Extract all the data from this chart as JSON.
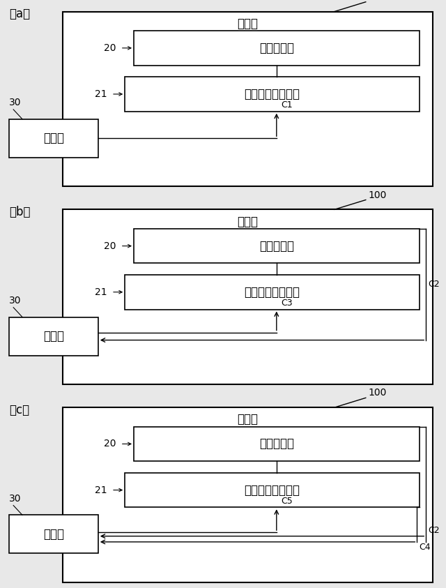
{
  "bg_color": "#e8e8e8",
  "box_color": "#ffffff",
  "box_edge": "#000000",
  "title_100": "100",
  "title_daichi": "載置台",
  "label_20": "20",
  "label_21": "21",
  "label_30": "30",
  "box20_text": "位置検出部",
  "box21_text": "位置検出部移動部",
  "box30_text": "制御部",
  "c1": "C1",
  "c2": "C2",
  "c3": "C3",
  "c4": "C4",
  "c5": "C5",
  "panel_labels": [
    "（a）",
    "（b）",
    "（c）"
  ],
  "panel_types": [
    "a",
    "b",
    "c"
  ]
}
